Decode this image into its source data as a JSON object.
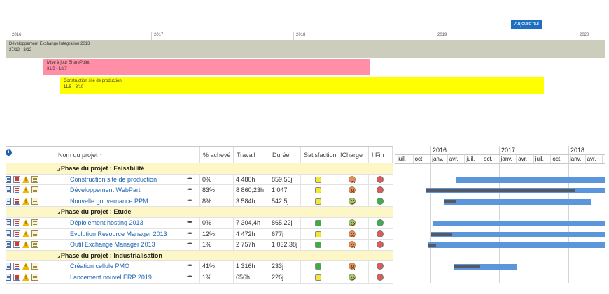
{
  "timeline": {
    "years": [
      "2016",
      "2017",
      "2018",
      "2019",
      "2020"
    ],
    "today_label": "Aujourd'hui",
    "bars": [
      {
        "title": "Développement Exchange Integration 2013",
        "dates": "27/12 - 3/12",
        "color": "#cdcdbe"
      },
      {
        "title": "Mise à jour SharePoint",
        "dates": "31/3 - 18/7",
        "color": "#ff8ea6"
      },
      {
        "title": "Construction site de production",
        "dates": "11/5 - 8/10",
        "color": "#ffff00"
      }
    ]
  },
  "grid": {
    "headers": {
      "name": "Nom du projet",
      "sort_arrow": "↑",
      "percent": "% achevé",
      "work": "Travail",
      "duration": "Durée",
      "satisfaction": "Satisfaction",
      "charge": "!Charge",
      "fin": "! Fin"
    },
    "info_icon": "i",
    "phases": [
      {
        "label": "Phase du projet : Faisabilité",
        "projects": [
          {
            "name": "Construction site de production",
            "dots": "•••",
            "percent": "0%",
            "work": "4 480h",
            "duration": "859,56j",
            "satisfaction": "yellow",
            "charge": "sad",
            "fin": "red"
          },
          {
            "name": "Développement WebPart",
            "dots": "•••",
            "percent": "83%",
            "work": "8 860,23h",
            "duration": "1 047j",
            "satisfaction": "yellow",
            "charge": "sad",
            "fin": "red"
          },
          {
            "name": "Nouvelle gouvernance PPM",
            "dots": "•••",
            "percent": "8%",
            "work": "3 584h",
            "duration": "542,5j",
            "satisfaction": "yellow",
            "charge": "happy",
            "fin": "green"
          }
        ]
      },
      {
        "label": "Phase du projet : Etude",
        "projects": [
          {
            "name": "Déploiement hosting 2013",
            "dots": "•••",
            "percent": "0%",
            "work": "7 304,4h",
            "duration": "865,22j",
            "satisfaction": "green",
            "charge": "happy",
            "fin": "green"
          },
          {
            "name": "Evolution Resource Manager 2013",
            "dots": "•••",
            "percent": "12%",
            "work": "4 472h",
            "duration": "677j",
            "satisfaction": "yellow",
            "charge": "sad",
            "fin": "red"
          },
          {
            "name": "Outil Exchange Manager 2013",
            "dots": "•••",
            "percent": "1%",
            "work": "2 757h",
            "duration": "1 032,38j",
            "satisfaction": "green",
            "charge": "sad",
            "fin": "red"
          }
        ]
      },
      {
        "label": "Phase du projet : Industrialisation",
        "projects": [
          {
            "name": "Création cellule PMO",
            "dots": "•••",
            "percent": "41%",
            "work": "1 316h",
            "duration": "233j",
            "satisfaction": "green",
            "charge": "sad",
            "fin": "red"
          },
          {
            "name": "Lancement nouvel ERP 2019",
            "dots": "•••",
            "percent": "1%",
            "work": "656h",
            "duration": "226j",
            "satisfaction": "yellow",
            "charge": "happy",
            "fin": "red"
          }
        ]
      }
    ]
  },
  "gantt": {
    "years": [
      "2016",
      "2017",
      "2018"
    ],
    "quarters": [
      "juil.",
      "oct.",
      "janv.",
      "avr.",
      "juil.",
      "oct.",
      "janv.",
      "avr.",
      "juil.",
      "oct.",
      "janv.",
      "avr."
    ],
    "bar_color": "#5b96dd",
    "progress_color": "#555a60",
    "row_progress": [
      0,
      0.83,
      0.08,
      0,
      0.12,
      0.01,
      0.41,
      0.01
    ]
  }
}
